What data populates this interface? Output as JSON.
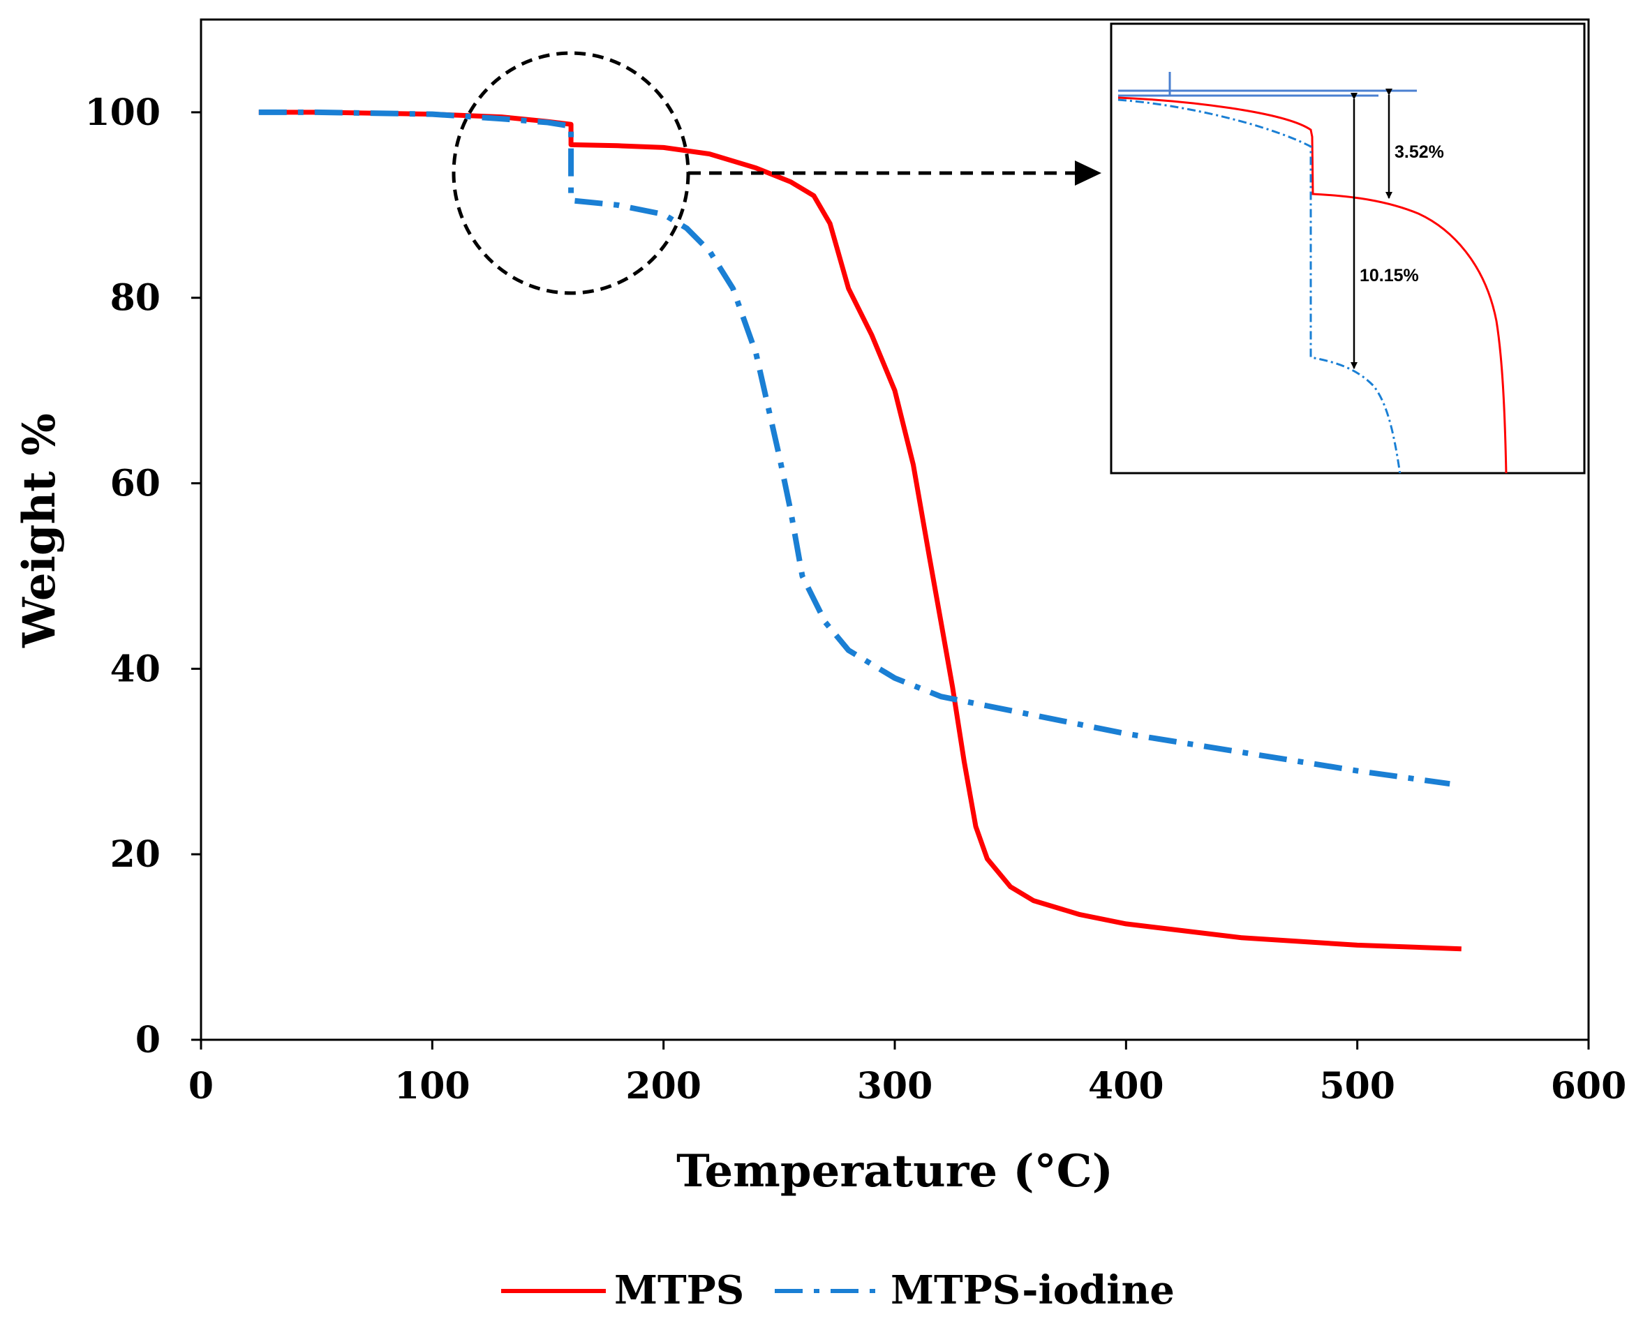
{
  "chart_data": {
    "type": "line",
    "title": "",
    "xlabel": "Temperature (°C)",
    "ylabel": "Weight %",
    "xlim": [
      0,
      600
    ],
    "ylim": [
      0,
      110
    ],
    "xticks": [
      0,
      100,
      200,
      300,
      400,
      500,
      600
    ],
    "yticks": [
      0,
      20,
      40,
      60,
      80,
      100
    ],
    "legend_position": "bottom",
    "series": [
      {
        "name": "MTPS",
        "color": "#ff0000",
        "style": "solid",
        "x": [
          25,
          50,
          100,
          130,
          150,
          160,
          160,
          180,
          200,
          220,
          240,
          255,
          265,
          272,
          280,
          290,
          300,
          308,
          315,
          320,
          325,
          330,
          335,
          340,
          350,
          360,
          380,
          400,
          450,
          500,
          545
        ],
        "y": [
          100,
          100,
          99.8,
          99.5,
          99.0,
          98.7,
          96.5,
          96.4,
          96.2,
          95.5,
          94.0,
          92.5,
          91.0,
          88.0,
          81.0,
          76.0,
          70.0,
          62.0,
          52.0,
          45.0,
          38.0,
          30.0,
          23.0,
          19.5,
          16.5,
          15.0,
          13.5,
          12.5,
          11.0,
          10.2,
          9.8
        ]
      },
      {
        "name": "MTPS-iodine",
        "color": "#1a7fd4",
        "style": "dashdot",
        "x": [
          25,
          50,
          100,
          130,
          150,
          160,
          160,
          180,
          200,
          210,
          220,
          230,
          240,
          250,
          255,
          260,
          270,
          280,
          300,
          320,
          340,
          360,
          400,
          450,
          500,
          540
        ],
        "y": [
          100,
          100,
          99.8,
          99.3,
          98.9,
          98.5,
          90.5,
          90.0,
          89.0,
          87.5,
          85.0,
          81.0,
          74.0,
          63.0,
          57.0,
          50.0,
          45.0,
          42.0,
          39.0,
          37.0,
          36.0,
          35.0,
          33.0,
          31.0,
          29.0,
          27.6
        ]
      }
    ],
    "inset": {
      "annotations": [
        "3.52%",
        "10.15%"
      ]
    }
  }
}
